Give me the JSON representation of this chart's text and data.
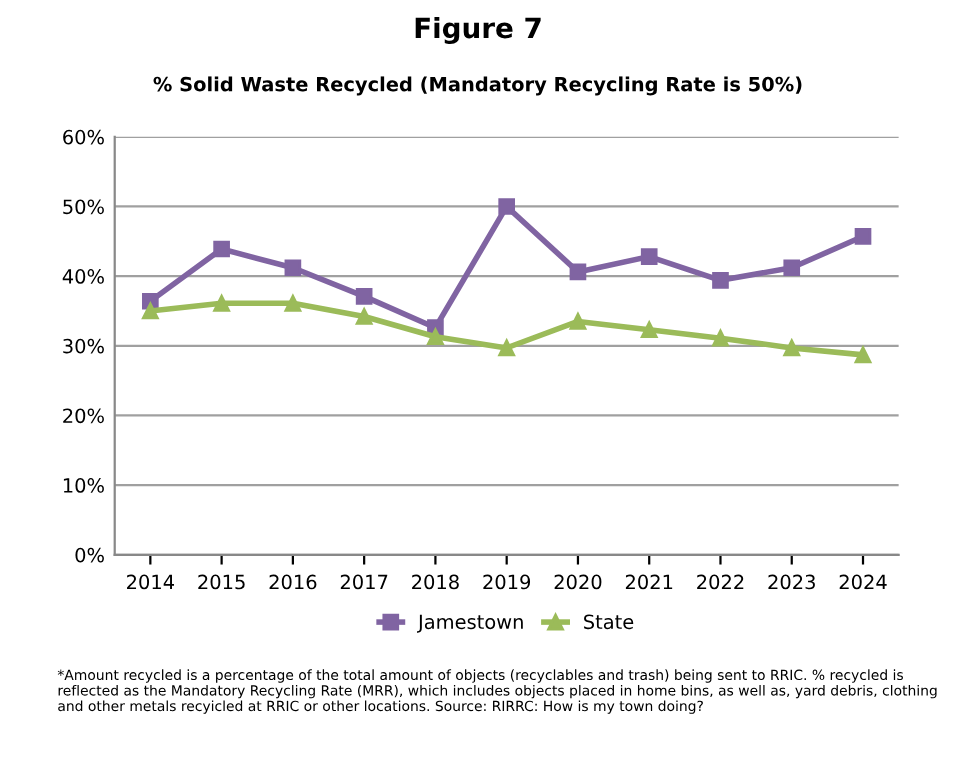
{
  "chart_data": {
    "type": "line",
    "title": "Figure 7",
    "subtitle": "% Solid Waste Recycled (Mandatory Recycling Rate is 50%)",
    "categories": [
      "2014",
      "2015",
      "2016",
      "2017",
      "2018",
      "2019",
      "2020",
      "2021",
      "2022",
      "2023",
      "2024"
    ],
    "series": [
      {
        "name": "Jamestown",
        "color": "#8064a2",
        "marker": "square",
        "values": [
          36.4,
          43.9,
          41.2,
          37.1,
          32.6,
          50.0,
          40.6,
          42.8,
          39.4,
          41.2,
          45.7
        ]
      },
      {
        "name": "State",
        "color": "#9bbb59",
        "marker": "triangle",
        "values": [
          35.0,
          36.1,
          36.1,
          34.2,
          31.3,
          29.7,
          33.5,
          32.3,
          31.1,
          29.7,
          28.7
        ]
      }
    ],
    "ylim": [
      0,
      60
    ],
    "yticks": [
      {
        "value": 0,
        "label": "0%"
      },
      {
        "value": 10,
        "label": "10%"
      },
      {
        "value": 20,
        "label": "20%"
      },
      {
        "value": 30,
        "label": "30%"
      },
      {
        "value": 40,
        "label": "40%"
      },
      {
        "value": 50,
        "label": "50%"
      },
      {
        "value": 60,
        "label": "60%"
      }
    ],
    "grid": "y",
    "legend": "bottom",
    "line_style": "solid",
    "annotations": [
      "*Amount recycled is a percentage of the total amount of objects (recyclables and trash) being sent to RRIC. % recycled is reflected as the Mandatory Recycling Rate (MRR), which includes objects placed in home bins, as well as, yard debris, clothing and other metals recyicled at RRIC or other locations. Source: RIRRC: How is my town doing?"
    ]
  }
}
